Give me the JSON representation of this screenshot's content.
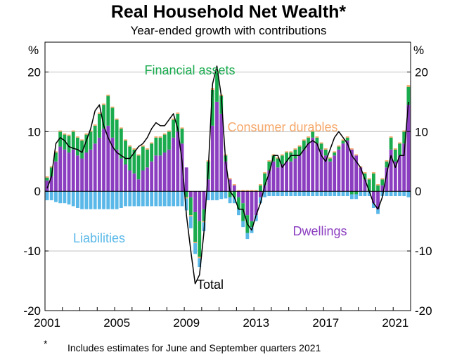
{
  "title": "Real Household Net Wealth*",
  "subtitle": "Year-ended growth with contributions",
  "footnote_mark": "*",
  "footnote": "Includes estimates for June and September quarters 2021",
  "colors": {
    "financial_assets": "#1aab4f",
    "consumer_durables": "#f5a86a",
    "dwellings": "#8b3ec0",
    "liabilities": "#5ab8e8",
    "total": "#000000",
    "gridline": "#bfbfbf"
  },
  "chart_data": {
    "type": "bar",
    "stacked": true,
    "frequency": "quarterly",
    "x_start": "2001-Q1",
    "x_tick_labels": [
      "2001",
      "2005",
      "2009",
      "2013",
      "2017",
      "2021"
    ],
    "ylim": [
      -20,
      25
    ],
    "y_ticks": [
      -20,
      -10,
      0,
      10,
      20
    ],
    "y_unit_left": "%",
    "y_unit_right": "%",
    "grid": "horizontal",
    "series": [
      {
        "name": "Financial assets",
        "kind": "bar",
        "values": [
          0.5,
          1.5,
          1.5,
          2.5,
          2.5,
          2.8,
          3,
          3,
          3,
          3,
          3,
          3,
          4,
          4,
          5,
          5,
          5,
          5,
          4,
          4,
          4,
          4,
          4,
          3,
          3,
          3,
          3,
          3,
          3,
          3,
          3,
          2.5,
          -1,
          -3,
          -5,
          -6,
          -2,
          3,
          6,
          5,
          3,
          1,
          -1,
          -1,
          -2,
          -3,
          -3,
          -1,
          0,
          1,
          2,
          1.5,
          1,
          1.5,
          1.5,
          1.5,
          1.5,
          1.5,
          1.5,
          1.5,
          1,
          1,
          1,
          1,
          1,
          0.5,
          0.5,
          0.5,
          0.5,
          0.5,
          -0.5,
          -0.5,
          0,
          1,
          2,
          3,
          1,
          1,
          1,
          2,
          2,
          2,
          2,
          3
        ]
      },
      {
        "name": "Consumer durables",
        "kind": "bar",
        "values": [
          0.2,
          0.2,
          0.2,
          0.2,
          0.2,
          0.2,
          0.2,
          0.2,
          0.2,
          0.2,
          0.2,
          0.2,
          0.2,
          0.2,
          0.2,
          0.2,
          0.2,
          0.2,
          0.2,
          0.2,
          0.2,
          0.2,
          0.2,
          0.2,
          0.2,
          0.2,
          0.2,
          0.2,
          0.2,
          0.2,
          0.2,
          0.2,
          -0.2,
          -0.2,
          -0.2,
          -0.2,
          -0.2,
          0.2,
          0.3,
          0.2,
          0.2,
          0.2,
          0.2,
          0.2,
          0.2,
          0.2,
          0.2,
          0.2,
          0.2,
          0.2,
          0.2,
          0.2,
          0.2,
          0.2,
          0.2,
          0.2,
          0.2,
          0.2,
          0.2,
          0.2,
          0.2,
          0.2,
          0.2,
          0.2,
          0.2,
          0.2,
          0.2,
          0.2,
          0.2,
          0.2,
          0.2,
          0.2,
          0.2,
          0.2,
          0.2,
          0.2,
          0.2,
          0.2,
          0.2,
          0.2,
          0.2,
          0.2,
          0.2,
          0.3
        ]
      },
      {
        "name": "Dwellings",
        "kind": "bar",
        "values": [
          1.8,
          2.5,
          5,
          7.5,
          7,
          6.5,
          7,
          6,
          5.5,
          6.5,
          7,
          8,
          9,
          10.5,
          11,
          9,
          7,
          5.5,
          4.5,
          3.5,
          3,
          2,
          3.5,
          4,
          5,
          6,
          6,
          6.5,
          7,
          9,
          10,
          8,
          4,
          -1,
          -3.5,
          -5,
          -3,
          2,
          11,
          15,
          13,
          5,
          2,
          1,
          -1,
          -2,
          -4,
          -5,
          -4,
          -1,
          1,
          3.5,
          5,
          4,
          4.5,
          5,
          5,
          5.5,
          6,
          7,
          8,
          9,
          8,
          7,
          6,
          5,
          6,
          7,
          8,
          8.5,
          7,
          6,
          4,
          2,
          0,
          -2,
          -3,
          1,
          4,
          7,
          5,
          6,
          8,
          14.5
        ]
      },
      {
        "name": "Liabilities",
        "kind": "bar",
        "values": [
          -1.5,
          -1.5,
          -1.8,
          -2,
          -2,
          -2.2,
          -2.5,
          -2.8,
          -3,
          -3,
          -3,
          -3,
          -3,
          -3,
          -3,
          -3,
          -3,
          -2.8,
          -2.5,
          -2.5,
          -2.5,
          -2.5,
          -2.5,
          -2.5,
          -2.5,
          -2.5,
          -2.5,
          -2.5,
          -2.5,
          -2.5,
          -2.5,
          -2.5,
          -2,
          -2,
          -1.8,
          -1.5,
          -1.5,
          -1.5,
          -1.5,
          -1.5,
          -1.3,
          -1.2,
          -1,
          -1,
          -1,
          -1,
          -1,
          -1,
          -1,
          -1,
          -1,
          -0.8,
          -0.8,
          -0.8,
          -0.8,
          -0.8,
          -0.8,
          -0.8,
          -0.8,
          -0.8,
          -0.8,
          -0.8,
          -0.8,
          -0.8,
          -0.8,
          -0.8,
          -0.8,
          -0.8,
          -0.8,
          -0.8,
          -0.8,
          -0.8,
          -0.8,
          -0.8,
          -0.8,
          -0.8,
          -0.8,
          -0.8,
          -0.8,
          -0.8,
          -0.8,
          -0.8,
          -0.8,
          -1
        ]
      },
      {
        "name": "Total",
        "kind": "line",
        "values": [
          0.5,
          2.5,
          8,
          9,
          8.5,
          7.5,
          7.2,
          7,
          6.5,
          8.5,
          10.5,
          13.5,
          14.5,
          11,
          9,
          7.5,
          6.5,
          6,
          5.5,
          5.5,
          6.5,
          7.5,
          8,
          9,
          10.5,
          11.5,
          11,
          11,
          12,
          13,
          10.5,
          5,
          -4,
          -10,
          -15.5,
          -14,
          -7,
          3.5,
          18,
          21,
          16,
          5,
          0,
          -1,
          -3,
          -3,
          -5.5,
          -6.5,
          -4,
          -2,
          1,
          3,
          6,
          6,
          4,
          5,
          6,
          6,
          6,
          7,
          8,
          8.5,
          8,
          6,
          5,
          7,
          9,
          10,
          9,
          8,
          6,
          5,
          4,
          2,
          0,
          -2,
          -3,
          -1,
          3,
          6,
          4,
          6,
          6,
          15
        ]
      }
    ],
    "annotations": [
      {
        "text": "Financial assets",
        "color": "#1aab4f"
      },
      {
        "text": "Consumer durables",
        "color": "#f5a86a"
      },
      {
        "text": "Liabilities",
        "color": "#5ab8e8"
      },
      {
        "text": "Dwellings",
        "color": "#8b3ec0"
      },
      {
        "text": "Total",
        "color": "#000000"
      }
    ]
  }
}
